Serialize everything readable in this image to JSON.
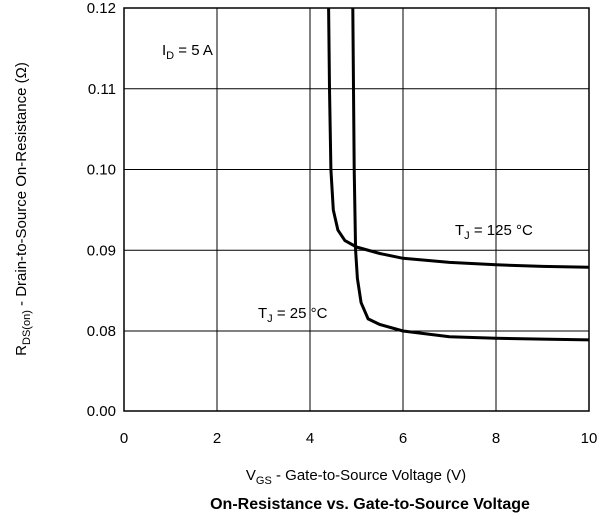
{
  "chart_data": {
    "type": "line",
    "title": "On-Resistance vs. Gate-to-Source Voltage",
    "xlabel": {
      "main": "V",
      "sub": "GS",
      "rest": " - Gate-to-Source Voltage (V)"
    },
    "ylabel": {
      "main": "R",
      "sub": "DS(on)",
      "rest": " - Drain-to-Source On-Resistance (Ω)"
    },
    "xlim": [
      0,
      10
    ],
    "y_ticks": [
      0.08,
      0.09,
      0.1,
      0.11,
      0.12
    ],
    "x_tick_labels": [
      "0",
      "2",
      "4",
      "6",
      "8",
      "10"
    ],
    "y_tick_labels": [
      "0.00",
      "0.08",
      "0.09",
      "0.10",
      "0.11",
      "0.12"
    ],
    "y_axis_break": "0.00 at bottom, linear 0.075–0.12 above",
    "grid": true,
    "annotations": [
      {
        "main": "I",
        "sub": "D",
        "rest": " = 5 A"
      },
      {
        "main": "T",
        "sub": "J",
        "rest": " = 125 °C"
      },
      {
        "main": "T",
        "sub": "J",
        "rest": " = 25 °C"
      }
    ],
    "series": [
      {
        "condition": "TJ = 125 °C",
        "x": [
          4.4,
          4.42,
          4.45,
          4.5,
          4.6,
          4.75,
          5.0,
          5.5,
          6.0,
          7.0,
          8.0,
          9.0,
          10.0
        ],
        "y": [
          0.12,
          0.11,
          0.1,
          0.095,
          0.0925,
          0.0912,
          0.0904,
          0.0896,
          0.089,
          0.0885,
          0.0882,
          0.088,
          0.0879
        ]
      },
      {
        "condition": "TJ = 25 °C",
        "x": [
          4.92,
          4.95,
          4.98,
          5.02,
          5.1,
          5.25,
          5.5,
          6.0,
          7.0,
          8.0,
          9.0,
          10.0
        ],
        "y": [
          0.12,
          0.1,
          0.09,
          0.0865,
          0.0835,
          0.0815,
          0.0808,
          0.08,
          0.0793,
          0.0791,
          0.079,
          0.0789
        ]
      }
    ]
  }
}
